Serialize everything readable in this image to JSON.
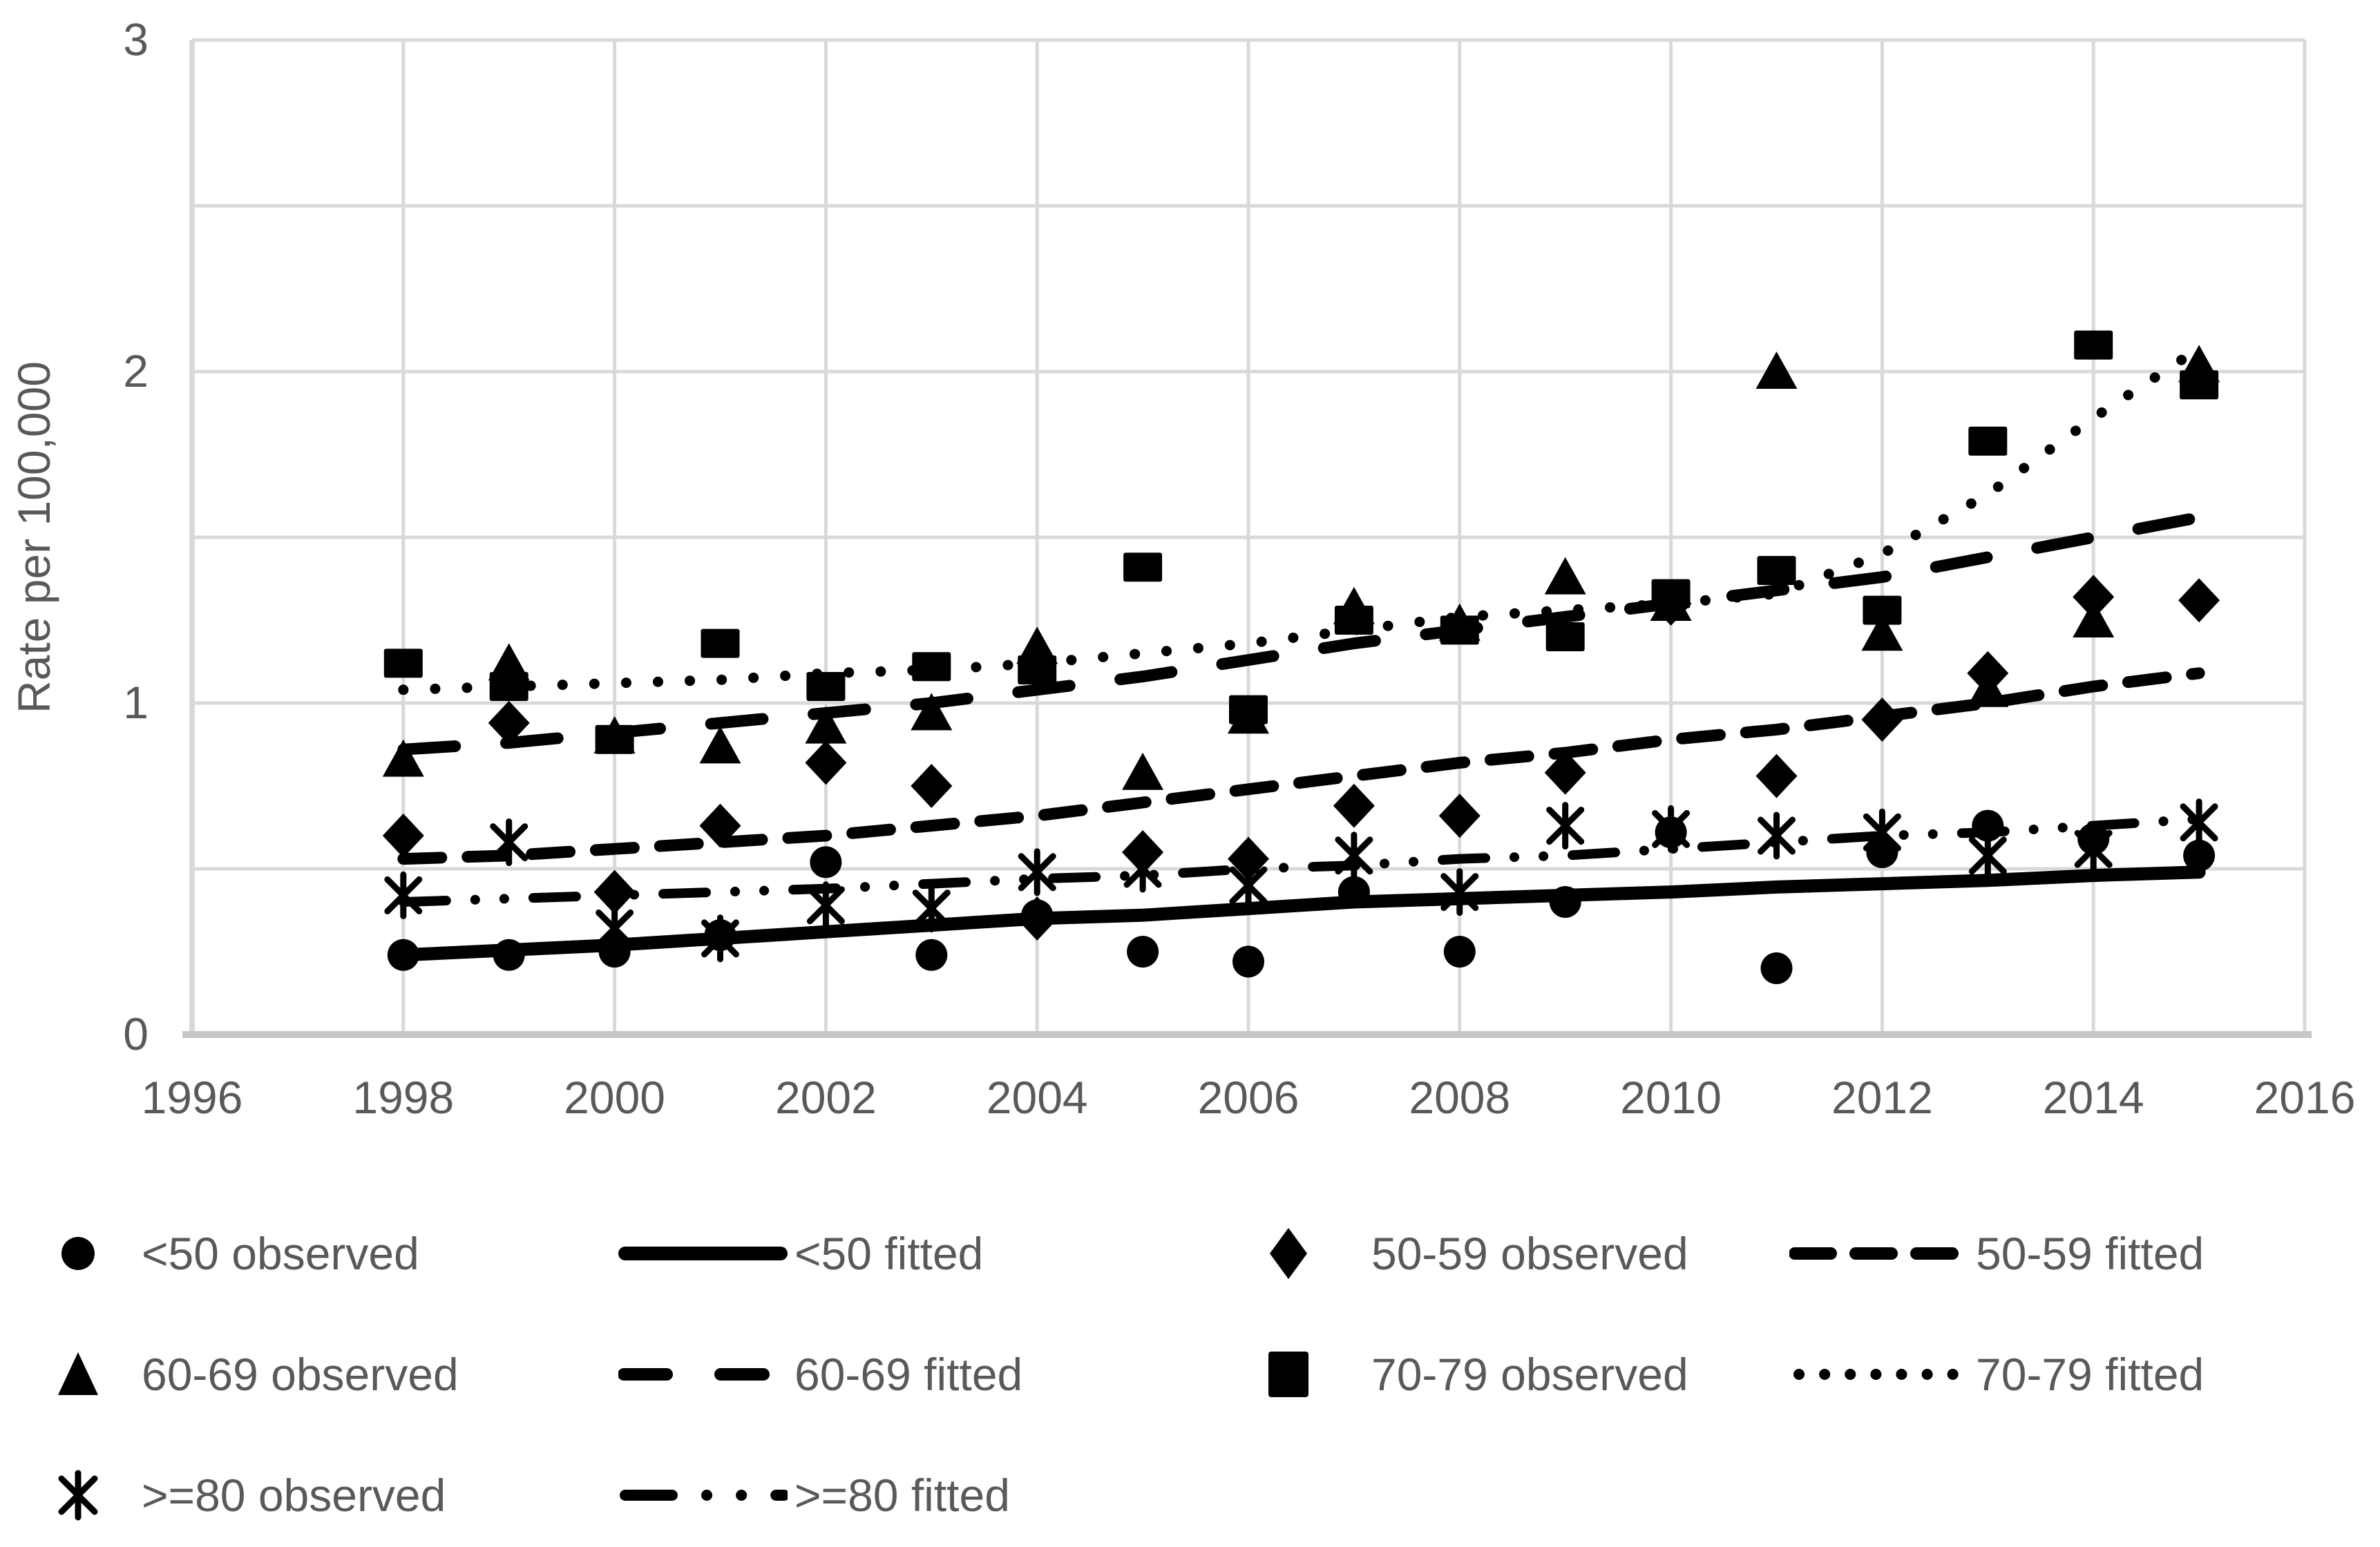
{
  "figure": {
    "type": "statistical chart (observed points with fitted trend lines)",
    "background": "#ffffff"
  },
  "colors": {
    "series": "#000000",
    "gridline": "#d9d9d9",
    "axis_line": "#c6c6c6",
    "text": "#595959"
  },
  "chart_data": {
    "type": "line",
    "title": "",
    "xlabel": "",
    "ylabel": "Rate per 100,000",
    "xlim": [
      1996,
      2016
    ],
    "ylim": [
      0,
      3
    ],
    "x_tick_labels": [
      1996,
      1998,
      2000,
      2002,
      2004,
      2006,
      2008,
      2010,
      2012,
      2014,
      2016
    ],
    "y_tick_labels": [
      0,
      1,
      2,
      3
    ],
    "y_gridline_step": 0.5,
    "grid": true,
    "legend_position": "bottom",
    "x": [
      1998,
      1999,
      2000,
      2001,
      2002,
      2003,
      2004,
      2005,
      2006,
      2007,
      2008,
      2009,
      2010,
      2011,
      2012,
      2013,
      2014,
      2015
    ],
    "series": [
      {
        "name": "<50 observed",
        "kind": "marker",
        "marker": "circle",
        "values": [
          0.24,
          0.24,
          0.25,
          0.3,
          0.52,
          0.24,
          0.36,
          0.25,
          0.22,
          0.43,
          0.25,
          0.4,
          0.61,
          0.2,
          0.55,
          0.63,
          0.59,
          0.54
        ]
      },
      {
        "name": "<50 fitted",
        "kind": "line",
        "style": "solid",
        "values": [
          0.24,
          0.255,
          0.27,
          0.29,
          0.31,
          0.33,
          0.35,
          0.36,
          0.38,
          0.4,
          0.41,
          0.42,
          0.43,
          0.445,
          0.455,
          0.465,
          0.48,
          0.49
        ]
      },
      {
        "name": "50-59 observed",
        "kind": "marker",
        "marker": "diamond",
        "values": [
          0.6,
          0.94,
          0.43,
          0.63,
          0.82,
          0.75,
          0.35,
          0.55,
          0.53,
          0.69,
          0.66,
          0.79,
          1.3,
          0.78,
          0.95,
          1.09,
          1.32,
          1.31
        ]
      },
      {
        "name": "50-59 fitted",
        "kind": "line",
        "style": "dash",
        "values": [
          0.53,
          0.54,
          0.56,
          0.58,
          0.6,
          0.63,
          0.66,
          0.7,
          0.74,
          0.78,
          0.82,
          0.85,
          0.89,
          0.92,
          0.96,
          1.0,
          1.05,
          1.09
        ]
      },
      {
        "name": "60-69 observed",
        "kind": "marker",
        "marker": "triangle",
        "values": [
          0.83,
          1.12,
          0.9,
          0.87,
          0.93,
          0.97,
          1.17,
          0.79,
          0.96,
          1.29,
          1.24,
          1.38,
          1.3,
          2.0,
          1.21,
          1.04,
          1.25,
          2.02
        ]
      },
      {
        "name": "60-69 fitted",
        "kind": "line",
        "style": "longdash",
        "values": [
          0.86,
          0.88,
          0.91,
          0.94,
          0.97,
          1.0,
          1.04,
          1.08,
          1.13,
          1.18,
          1.22,
          1.26,
          1.3,
          1.34,
          1.38,
          1.44,
          1.5,
          1.56
        ]
      },
      {
        "name": "70-79 observed",
        "kind": "marker",
        "marker": "square",
        "values": [
          1.12,
          1.05,
          0.89,
          1.18,
          1.05,
          1.11,
          1.1,
          1.41,
          0.98,
          1.25,
          1.22,
          1.2,
          1.33,
          1.4,
          1.28,
          1.79,
          2.08,
          1.96
        ]
      },
      {
        "name": "70-79 fitted",
        "kind": "line",
        "style": "dot",
        "values": [
          1.04,
          1.05,
          1.06,
          1.07,
          1.09,
          1.1,
          1.12,
          1.15,
          1.18,
          1.22,
          1.26,
          1.28,
          1.3,
          1.33,
          1.45,
          1.63,
          1.86,
          2.07
        ]
      },
      {
        "name": ">=80 observed",
        "kind": "marker",
        "marker": "star",
        "values": [
          0.42,
          0.58,
          0.32,
          0.29,
          0.39,
          0.38,
          0.49,
          0.5,
          0.45,
          0.54,
          0.43,
          0.63,
          0.62,
          0.6,
          0.61,
          0.54,
          0.56,
          0.64
        ]
      },
      {
        "name": ">=80 fitted",
        "kind": "line",
        "style": "dashdotdot",
        "values": [
          0.4,
          0.41,
          0.42,
          0.43,
          0.44,
          0.455,
          0.47,
          0.48,
          0.5,
          0.51,
          0.53,
          0.54,
          0.56,
          0.58,
          0.6,
          0.61,
          0.63,
          0.65
        ]
      }
    ],
    "legend": {
      "items": [
        {
          "label": "<50 observed"
        },
        {
          "label": "<50 fitted"
        },
        {
          "label": "50-59 observed"
        },
        {
          "label": "50-59 fitted"
        },
        {
          "label": "60-69 observed"
        },
        {
          "label": "60-69 fitted"
        },
        {
          "label": "70-79 observed"
        },
        {
          "label": "70-79 fitted"
        },
        {
          "label": ">=80 observed"
        },
        {
          "label": ">=80 fitted"
        }
      ]
    }
  }
}
